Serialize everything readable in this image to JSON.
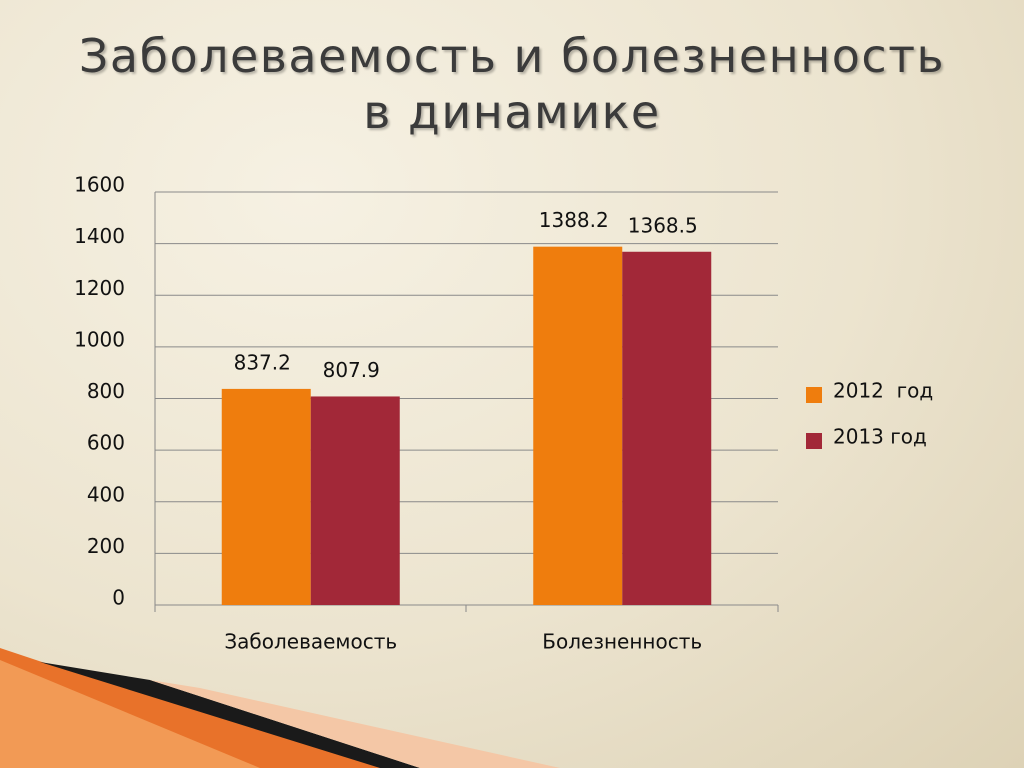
{
  "chart_data": {
    "type": "bar",
    "title": "Заболеваемость и болезненность в динамике",
    "categories": [
      "Заболеваемость",
      "Болезненность"
    ],
    "series": [
      {
        "name": "2012  год",
        "color": "#ef7d0d",
        "values": [
          837.2,
          1388.2
        ]
      },
      {
        "name": "2013 год",
        "color": "#a22838",
        "values": [
          807.9,
          1368.5
        ]
      }
    ],
    "ylim": [
      0,
      1600
    ],
    "yticks": [
      0,
      200,
      400,
      600,
      800,
      1000,
      1200,
      1400,
      1600
    ],
    "grid": true,
    "legend": "right"
  }
}
